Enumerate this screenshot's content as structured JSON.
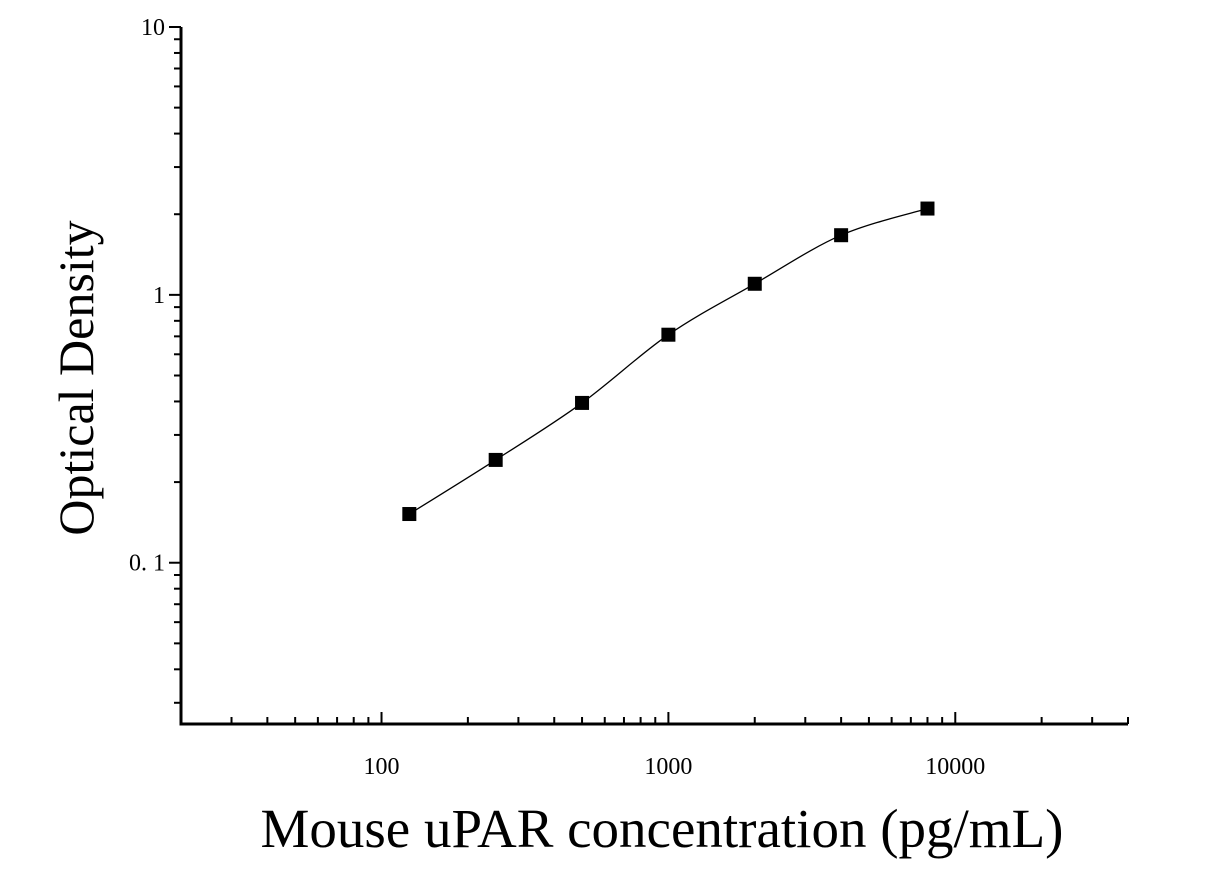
{
  "chart_data": {
    "type": "scatter",
    "xlabel": "Mouse uPAR concentration (pg/mL)",
    "ylabel": "Optical Density",
    "x_scale": "log",
    "y_scale": "log",
    "xlim": [
      20,
      40000
    ],
    "ylim": [
      0.025,
      10
    ],
    "x_ticks": [
      {
        "value": 100,
        "label": "100"
      },
      {
        "value": 1000,
        "label": "1000"
      },
      {
        "value": 10000,
        "label": "10000"
      }
    ],
    "y_ticks": [
      {
        "value": 0.1,
        "label": "0. 1"
      },
      {
        "value": 1,
        "label": "1"
      },
      {
        "value": 10,
        "label": "10"
      }
    ],
    "grid": false,
    "series": [
      {
        "marker": "square",
        "fit": "smooth curve",
        "color": "#000000",
        "points": [
          {
            "x": 125,
            "y": 0.152
          },
          {
            "x": 250,
            "y": 0.242
          },
          {
            "x": 500,
            "y": 0.395
          },
          {
            "x": 1000,
            "y": 0.71
          },
          {
            "x": 2000,
            "y": 1.1
          },
          {
            "x": 4000,
            "y": 1.67
          },
          {
            "x": 8000,
            "y": 2.1
          }
        ]
      }
    ]
  }
}
